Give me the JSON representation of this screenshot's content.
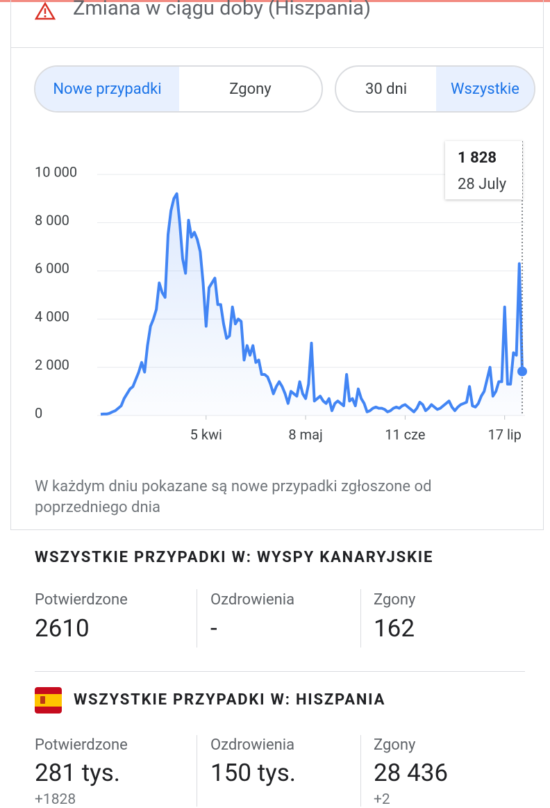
{
  "header": {
    "title": "Zmiana w ciągu doby (Hiszpania)"
  },
  "tabs": {
    "metric": [
      "Nowe przypadki",
      "Zgony"
    ],
    "selected_metric": 0,
    "range": [
      "30 dni",
      "Wszystkie"
    ],
    "selected_range": 1
  },
  "chart_data": {
    "type": "line",
    "categories": [
      null,
      null,
      null,
      null,
      null,
      null,
      null,
      null,
      null,
      null,
      null,
      null,
      null,
      null,
      null,
      null,
      null,
      null,
      null,
      null,
      null,
      null,
      null,
      null,
      null,
      null,
      null,
      null,
      null,
      null,
      null,
      null,
      null,
      null,
      null,
      null,
      "5 kwi",
      null,
      null,
      null,
      null,
      null,
      null,
      null,
      null,
      null,
      null,
      null,
      null,
      null,
      null,
      null,
      null,
      null,
      null,
      null,
      null,
      null,
      null,
      null,
      null,
      null,
      null,
      null,
      null,
      null,
      null,
      null,
      null,
      null,
      "8 maj",
      null,
      null,
      null,
      null,
      null,
      null,
      null,
      null,
      null,
      null,
      null,
      null,
      null,
      null,
      null,
      null,
      null,
      null,
      null,
      null,
      null,
      null,
      null,
      null,
      null,
      null,
      null,
      null,
      null,
      null,
      null,
      null,
      null,
      "11 cze",
      null,
      null,
      null,
      null,
      null,
      null,
      null,
      null,
      null,
      null,
      null,
      null,
      null,
      null,
      null,
      null,
      null,
      null,
      null,
      null,
      null,
      null,
      null,
      null,
      null,
      null,
      null,
      null,
      null,
      null,
      null,
      null,
      null,
      "17 lip",
      null,
      null,
      null,
      null,
      null,
      null
    ],
    "series": [
      {
        "name": "Nowe przypadki",
        "color": "#4285f4",
        "values": [
          50,
          60,
          60,
          90,
          150,
          200,
          300,
          400,
          700,
          900,
          1100,
          1200,
          1500,
          1800,
          2200,
          1800,
          2900,
          3700,
          4000,
          4400,
          5500,
          5100,
          4900,
          7500,
          8500,
          9000,
          9200,
          8000,
          6500,
          5900,
          8100,
          7400,
          7600,
          7300,
          6800,
          5500,
          3700,
          5300,
          5500,
          5700,
          4600,
          4600,
          3800,
          3200,
          3300,
          4500,
          3800,
          4000,
          3900,
          2300,
          2900,
          2500,
          2900,
          2200,
          2300,
          1700,
          1700,
          1600,
          1300,
          900,
          1200,
          1400,
          1200,
          900,
          500,
          1000,
          900,
          800,
          1400,
          900,
          700,
          1300,
          3000,
          600,
          700,
          800,
          600,
          500,
          700,
          200,
          500,
          600,
          500,
          400,
          1700,
          600,
          700,
          400,
          1100,
          700,
          500,
          150,
          200,
          300,
          350,
          300,
          300,
          250,
          150,
          200,
          300,
          350,
          300,
          400,
          450,
          350,
          250,
          150,
          300,
          550,
          450,
          200,
          300,
          450,
          350,
          250,
          300,
          400,
          500,
          600,
          350,
          200,
          350,
          450,
          500,
          550,
          1200,
          400,
          350,
          500,
          800,
          1000,
          1500,
          2000,
          800,
          1000,
          1400,
          1400,
          4500,
          1300,
          1300,
          2600,
          2500,
          6300,
          1828
        ]
      }
    ],
    "ylim": [
      0,
      11300
    ],
    "yticks": [
      0,
      {
        "value": 2000,
        "label": "2 000"
      },
      {
        "value": 4000,
        "label": "4 000"
      },
      {
        "value": 6000,
        "label": "6 000"
      },
      {
        "value": 8000,
        "label": "8 000"
      },
      {
        "value": 10000,
        "label": "10 000"
      }
    ],
    "grid": true,
    "tooltip": {
      "label": "1 828",
      "date": "28 July"
    }
  },
  "note": "W każdym dniu pokazane są nowe przypadki zgłoszone od poprzedniego dnia",
  "sections": [
    {
      "title": "WSZYSTKIE PRZYPADKI W: WYSPY KANARYJSKIE",
      "stats": [
        {
          "label": "Potwierdzone",
          "value": "2610"
        },
        {
          "label": "Ozdrowienia",
          "value": "-"
        },
        {
          "label": "Zgony",
          "value": "162"
        }
      ]
    },
    {
      "title": "WSZYSTKIE PRZYPADKI W: HISZPANIA",
      "stats": [
        {
          "label": "Potwierdzone",
          "value": "281 tys.",
          "change": "+1828"
        },
        {
          "label": "Ozdrowienia",
          "value": "150 tys."
        },
        {
          "label": "Zgony",
          "value": "28 436",
          "change": "+2"
        }
      ]
    }
  ]
}
